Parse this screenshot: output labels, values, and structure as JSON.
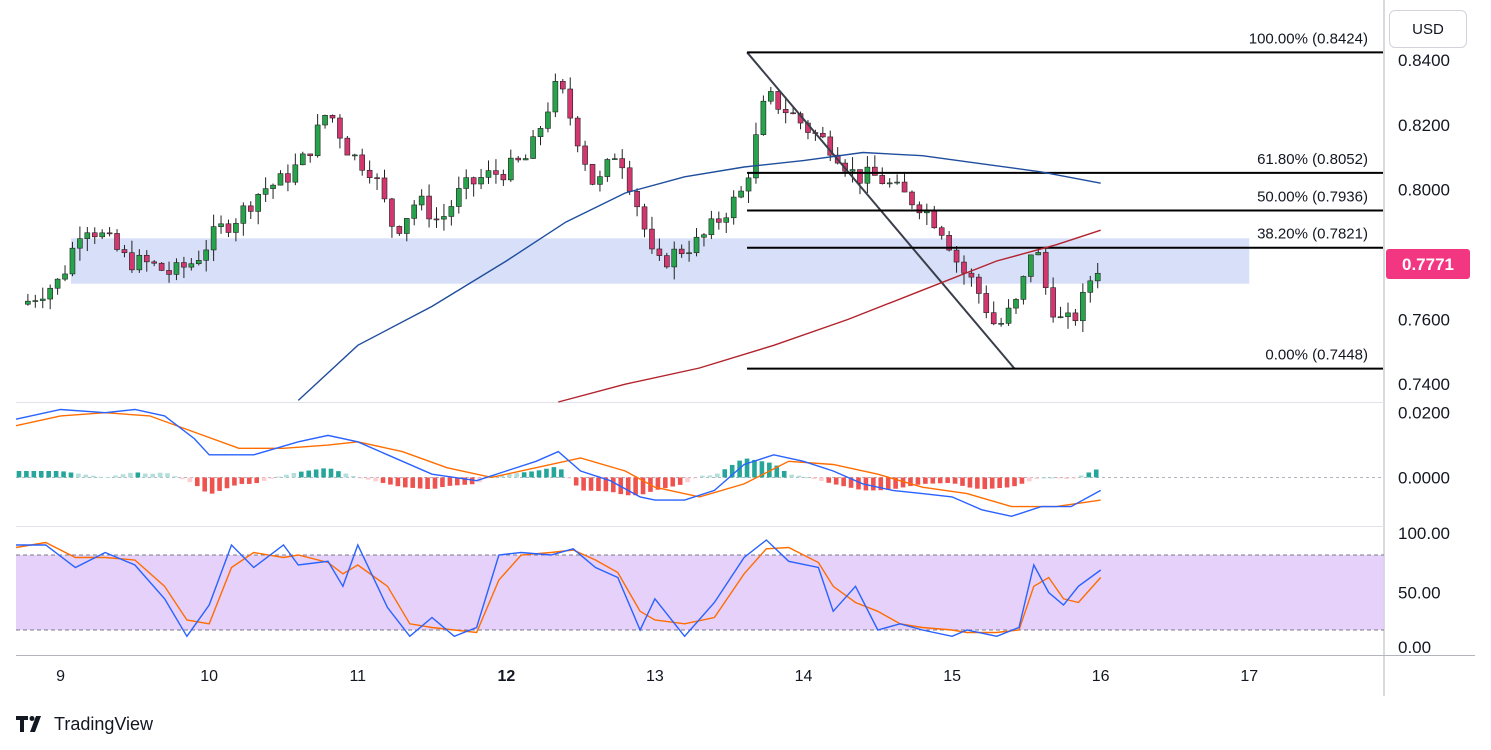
{
  "currency_label": "USD",
  "brand": {
    "name": "TradingView",
    "logo_icon": "tradingview-logo-icon"
  },
  "current_price": {
    "label": "0.7771",
    "value": 0.7771,
    "color": "#f23682"
  },
  "colors": {
    "up": "#089981",
    "up_body": "#27a44b",
    "down": "#d2386f",
    "ma_blue": "#1f4e9e",
    "ma_red": "#b2222c",
    "zone": "#c9d4f7",
    "rsi_band": "#e1c9f9",
    "macd_line": "#2962ff",
    "signal_line": "#ff6d00"
  },
  "chart_data": [
    {
      "type": "candlestick",
      "ylim": [
        0.7345,
        0.857
      ],
      "yticks": [
        "0.8400",
        "0.8200",
        "0.8000",
        "0.7800",
        "0.7600",
        "0.7400"
      ],
      "x_tick_labels": [
        "9",
        "10",
        "11",
        "12",
        "13",
        "14",
        "15",
        "16",
        "17"
      ],
      "x_tick_bold": [
        false,
        false,
        false,
        true,
        false,
        false,
        false,
        false,
        false
      ],
      "xlim": [
        8.7,
        17.9
      ],
      "close_path_x": [
        8.7,
        8.85,
        9.0,
        9.15,
        9.3,
        9.45,
        9.6,
        9.75,
        9.9,
        10.05,
        10.2,
        10.35,
        10.5,
        10.65,
        10.8,
        10.95,
        11.1,
        11.25,
        11.4,
        11.55,
        11.7,
        11.85,
        12.0,
        12.15,
        12.3,
        12.35,
        12.45,
        12.6,
        12.75,
        12.9,
        13.0,
        13.15,
        13.3,
        13.45,
        13.6,
        13.75,
        13.9,
        14.05,
        14.2,
        14.35,
        14.5,
        14.65,
        14.8,
        14.95,
        15.05,
        15.15,
        15.3,
        15.45,
        15.55,
        15.65,
        15.75,
        15.85,
        15.95,
        16.0
      ],
      "close_path_y": [
        0.763,
        0.768,
        0.772,
        0.79,
        0.785,
        0.778,
        0.777,
        0.774,
        0.778,
        0.787,
        0.792,
        0.8,
        0.803,
        0.81,
        0.825,
        0.811,
        0.806,
        0.787,
        0.797,
        0.79,
        0.8,
        0.804,
        0.806,
        0.81,
        0.828,
        0.833,
        0.82,
        0.8,
        0.813,
        0.793,
        0.776,
        0.781,
        0.784,
        0.792,
        0.8,
        0.829,
        0.824,
        0.818,
        0.813,
        0.804,
        0.804,
        0.799,
        0.795,
        0.787,
        0.776,
        0.771,
        0.757,
        0.766,
        0.785,
        0.766,
        0.758,
        0.762,
        0.775,
        0.777
      ],
      "ma_blue": {
        "x": [
          10.6,
          11.0,
          11.5,
          12.0,
          12.4,
          12.8,
          13.2,
          13.6,
          14.0,
          14.4,
          14.8,
          15.2,
          15.6,
          16.0
        ],
        "y": [
          0.735,
          0.752,
          0.764,
          0.778,
          0.79,
          0.799,
          0.804,
          0.807,
          0.809,
          0.8115,
          0.8105,
          0.808,
          0.8055,
          0.802
        ]
      },
      "ma_red": {
        "x": [
          12.35,
          12.8,
          13.3,
          13.8,
          14.3,
          14.8,
          15.3,
          15.7,
          16.0
        ],
        "y": [
          0.7345,
          0.74,
          0.745,
          0.752,
          0.76,
          0.769,
          0.778,
          0.783,
          0.7875
        ]
      },
      "support_zone": {
        "x0": 9.07,
        "x1": 17.0,
        "y0": 0.771,
        "y1": 0.785
      },
      "fibonacci": [
        {
          "label": "100.00% (0.8424)",
          "level": 0.8424,
          "x0": 13.62,
          "x1": 17.9
        },
        {
          "label": "61.80% (0.8052)",
          "level": 0.8052,
          "x0": 13.62,
          "x1": 17.9
        },
        {
          "label": "50.00% (0.7936)",
          "level": 0.7936,
          "x0": 13.62,
          "x1": 17.9
        },
        {
          "label": "38.20% (0.7821)",
          "level": 0.7821,
          "x0": 13.62,
          "x1": 17.9
        },
        {
          "label": "0.00% (0.7448)",
          "level": 0.7448,
          "x0": 13.62,
          "x1": 17.9
        }
      ],
      "fib_trend": {
        "x": [
          13.62,
          15.42
        ],
        "y": [
          0.8424,
          0.7448
        ]
      }
    },
    {
      "type": "macd",
      "ylim": [
        -0.015,
        0.023
      ],
      "yticks": [
        "0.0200",
        "0.0000"
      ],
      "macd": {
        "x": [
          8.7,
          9.0,
          9.3,
          9.5,
          9.7,
          9.9,
          10.0,
          10.3,
          10.6,
          10.8,
          11.0,
          11.2,
          11.5,
          11.8,
          12.0,
          12.2,
          12.35,
          12.5,
          12.7,
          12.9,
          13.0,
          13.2,
          13.4,
          13.6,
          13.8,
          14.0,
          14.2,
          14.4,
          14.6,
          14.8,
          15.0,
          15.2,
          15.4,
          15.6,
          15.8,
          16.0
        ],
        "y": [
          0.018,
          0.021,
          0.02,
          0.021,
          0.019,
          0.012,
          0.007,
          0.007,
          0.011,
          0.013,
          0.011,
          0.007,
          0.001,
          -0.001,
          0.002,
          0.005,
          0.008,
          0.002,
          -0.001,
          -0.006,
          -0.007,
          -0.007,
          -0.004,
          0.004,
          0.007,
          0.005,
          0.002,
          -0.002,
          -0.004,
          -0.005,
          -0.006,
          -0.01,
          -0.012,
          -0.009,
          -0.009,
          -0.004
        ]
      },
      "signal": {
        "x": [
          8.7,
          9.0,
          9.3,
          9.6,
          9.9,
          10.2,
          10.5,
          10.8,
          11.0,
          11.3,
          11.6,
          11.9,
          12.2,
          12.5,
          12.8,
          13.0,
          13.3,
          13.6,
          13.9,
          14.2,
          14.5,
          14.8,
          15.1,
          15.4,
          15.7,
          16.0
        ],
        "y": [
          0.016,
          0.019,
          0.02,
          0.019,
          0.014,
          0.009,
          0.009,
          0.01,
          0.011,
          0.008,
          0.003,
          0.0,
          0.003,
          0.006,
          0.002,
          -0.003,
          -0.006,
          -0.002,
          0.005,
          0.004,
          0.001,
          -0.003,
          -0.005,
          -0.009,
          -0.009,
          -0.007
        ]
      }
    },
    {
      "type": "rsi",
      "ylim": [
        0,
        100
      ],
      "yticks": [
        "100.00",
        "50.00",
        "0.00"
      ],
      "band": [
        20,
        80
      ],
      "k": {
        "x": [
          8.7,
          8.9,
          9.1,
          9.3,
          9.5,
          9.7,
          9.85,
          10.0,
          10.15,
          10.3,
          10.5,
          10.6,
          10.8,
          10.9,
          11.0,
          11.2,
          11.35,
          11.5,
          11.65,
          11.8,
          11.95,
          12.1,
          12.3,
          12.45,
          12.6,
          12.75,
          12.9,
          13.0,
          13.2,
          13.4,
          13.6,
          13.75,
          13.9,
          14.1,
          14.2,
          14.35,
          14.5,
          14.65,
          14.8,
          15.0,
          15.1,
          15.3,
          15.45,
          15.55,
          15.65,
          15.75,
          15.85,
          16.0
        ],
        "y": [
          88,
          88,
          70,
          82,
          72,
          45,
          15,
          40,
          88,
          70,
          88,
          72,
          75,
          55,
          88,
          38,
          15,
          30,
          15,
          22,
          80,
          82,
          80,
          85,
          70,
          62,
          20,
          45,
          15,
          42,
          78,
          92,
          75,
          70,
          35,
          55,
          20,
          25,
          20,
          15,
          20,
          15,
          22,
          72,
          50,
          40,
          55,
          68
        ]
      },
      "d": {
        "x": [
          8.7,
          8.9,
          9.1,
          9.3,
          9.5,
          9.7,
          9.85,
          10.0,
          10.15,
          10.3,
          10.5,
          10.6,
          10.8,
          10.9,
          11.0,
          11.2,
          11.35,
          11.5,
          11.65,
          11.8,
          11.95,
          12.1,
          12.3,
          12.45,
          12.6,
          12.75,
          12.9,
          13.0,
          13.2,
          13.4,
          13.6,
          13.75,
          13.9,
          14.1,
          14.2,
          14.35,
          14.5,
          14.65,
          14.8,
          15.0,
          15.1,
          15.3,
          15.45,
          15.55,
          15.65,
          15.75,
          15.85,
          16.0
        ],
        "y": [
          86,
          90,
          78,
          78,
          76,
          55,
          28,
          25,
          70,
          82,
          78,
          80,
          74,
          65,
          72,
          55,
          25,
          22,
          20,
          18,
          60,
          80,
          82,
          84,
          76,
          66,
          35,
          28,
          25,
          30,
          65,
          85,
          86,
          74,
          55,
          42,
          35,
          25,
          22,
          20,
          18,
          18,
          20,
          55,
          62,
          45,
          42,
          62
        ]
      }
    }
  ]
}
